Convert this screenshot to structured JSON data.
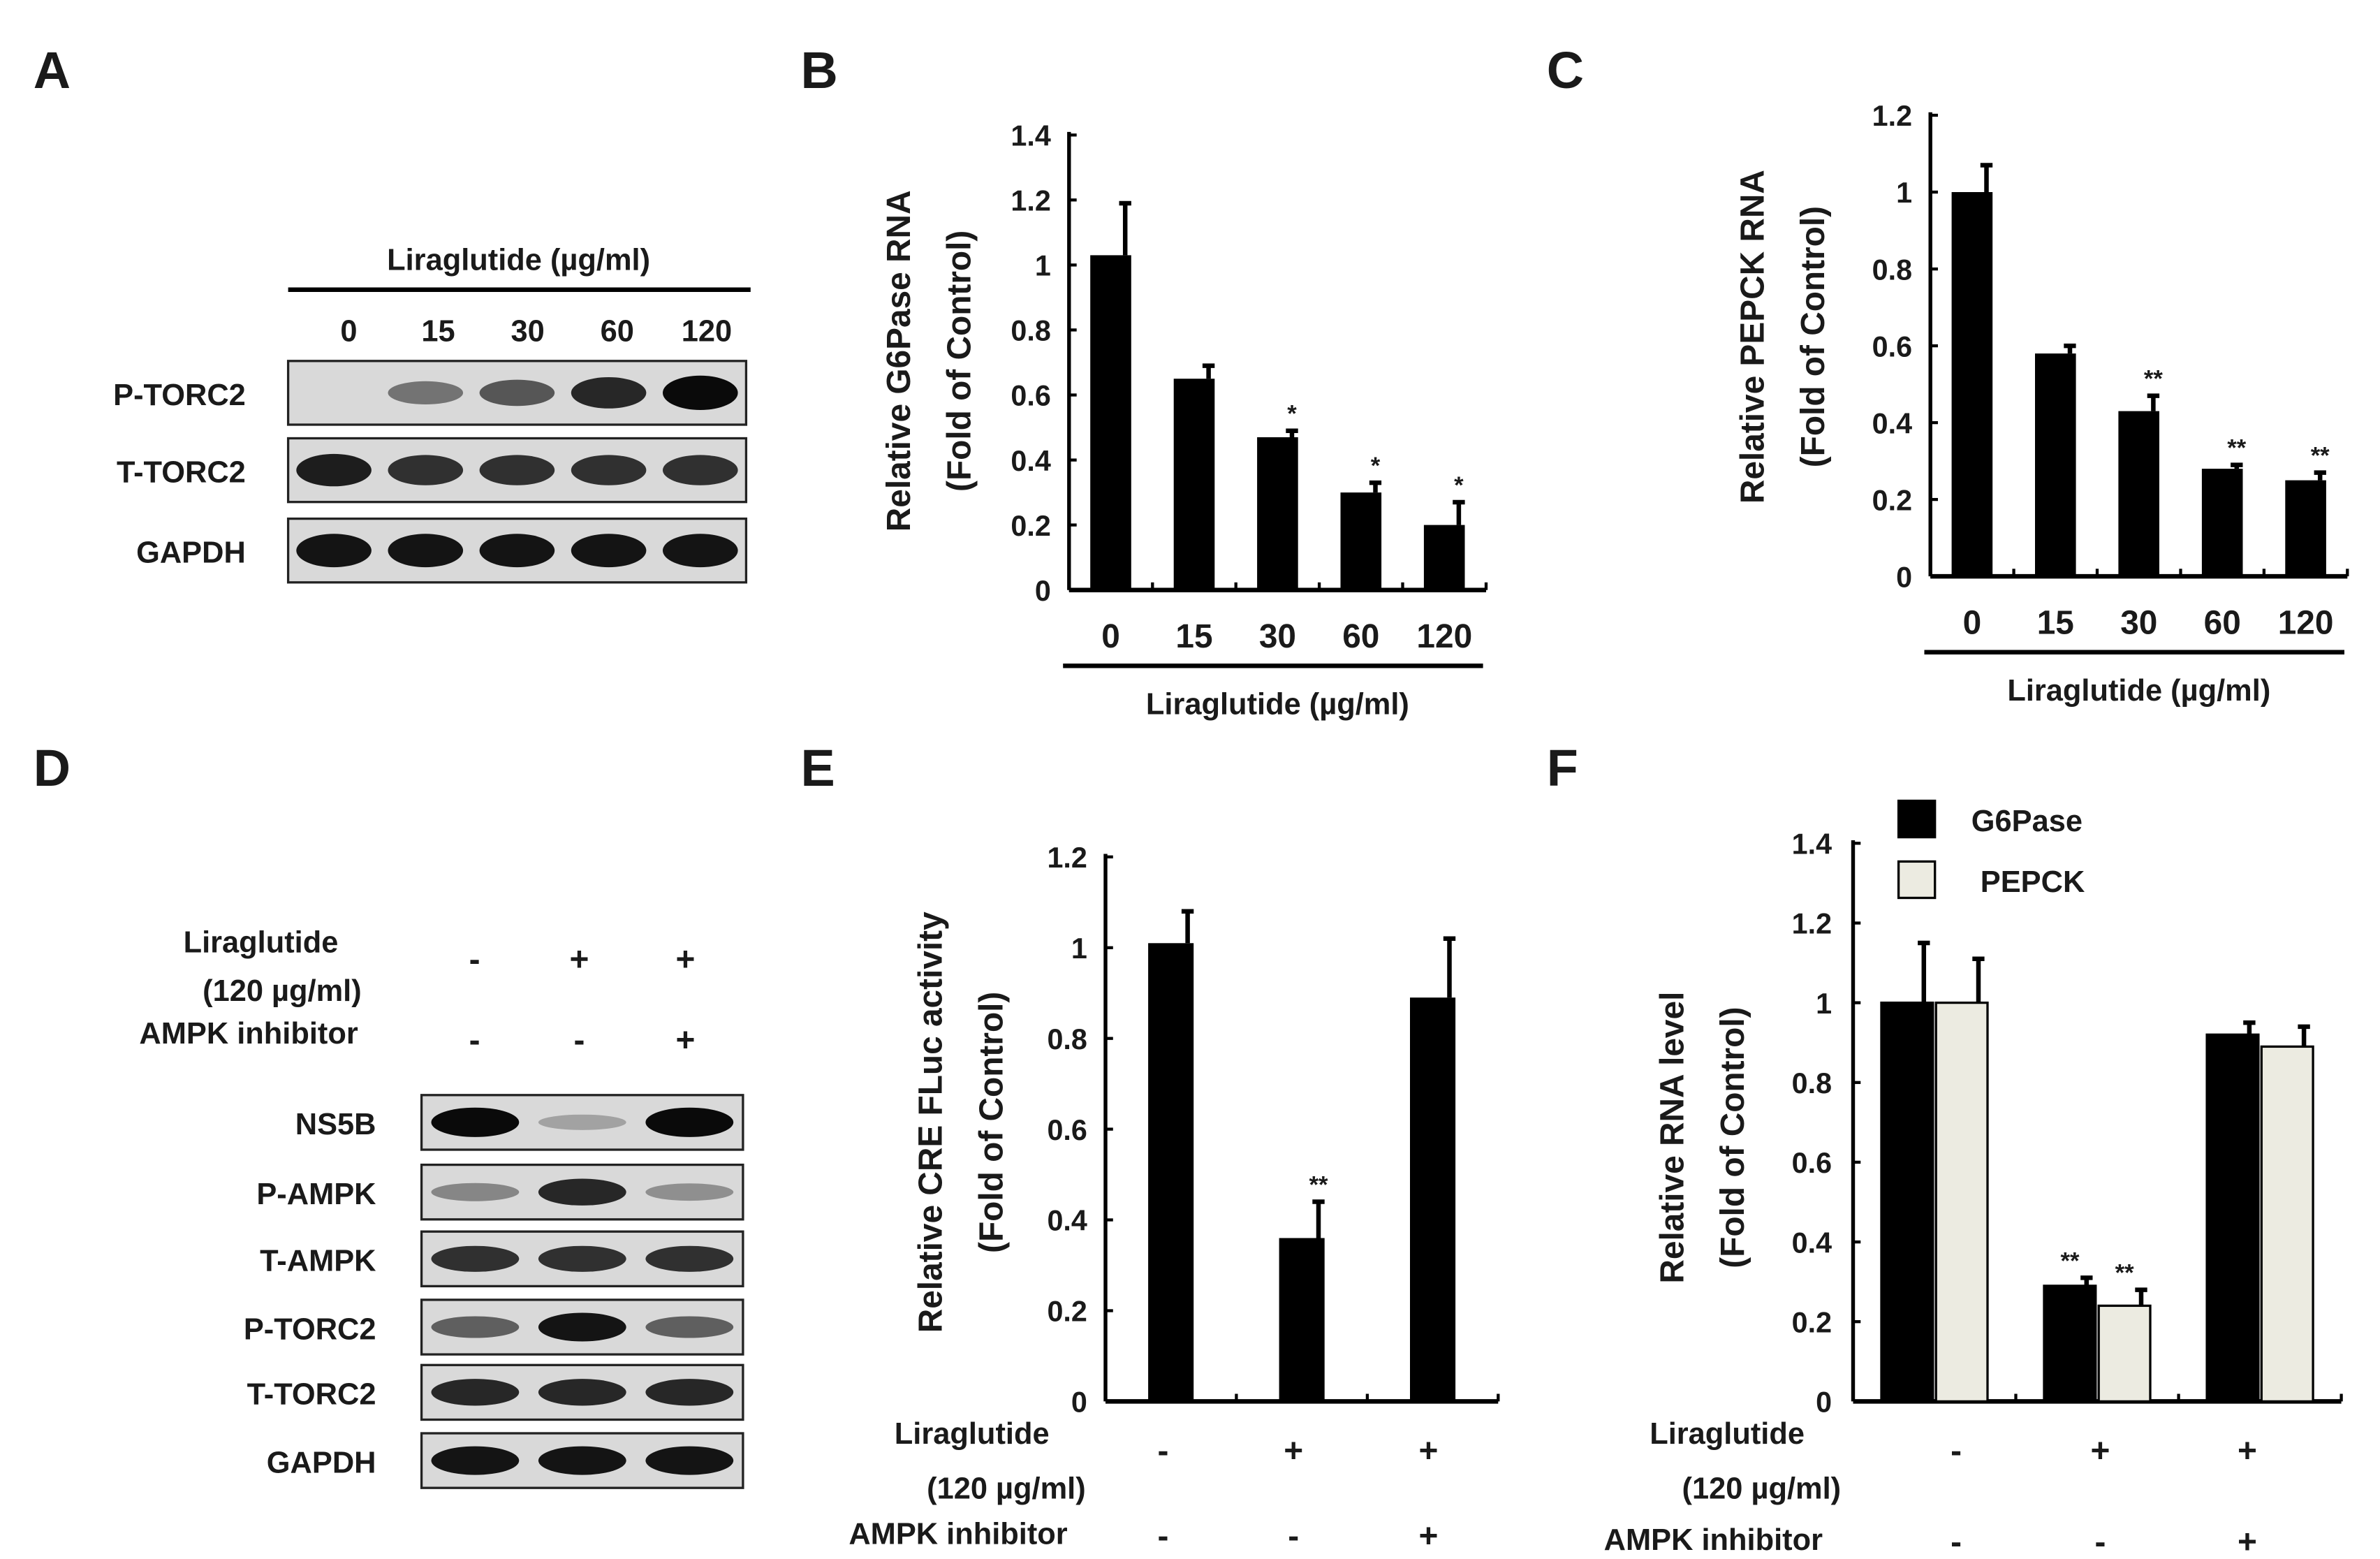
{
  "panels": {
    "A": {
      "letter": "A",
      "header": "Liraglutide (µg/ml)",
      "doses": [
        "0",
        "15",
        "30",
        "60",
        "120"
      ],
      "rows": [
        {
          "label": "P-TORC2",
          "intensity": [
            0.0,
            0.45,
            0.6,
            0.85,
            1.0
          ]
        },
        {
          "label": "T-TORC2",
          "intensity": [
            0.9,
            0.8,
            0.8,
            0.8,
            0.8
          ]
        },
        {
          "label": "GAPDH",
          "intensity": [
            0.95,
            0.95,
            0.95,
            0.95,
            0.95
          ]
        }
      ]
    },
    "D": {
      "letter": "D",
      "liraglutide_label": [
        "Liraglutide",
        "(120 µg/ml)"
      ],
      "inhibitor_label": "AMPK inhibitor",
      "liraglutide_signs": [
        "-",
        "+",
        "+"
      ],
      "inhibitor_signs": [
        "-",
        "-",
        "+"
      ],
      "rows": [
        {
          "label": "NS5B",
          "intensity": [
            1.0,
            0.2,
            1.0
          ]
        },
        {
          "label": "P-AMPK",
          "intensity": [
            0.35,
            0.85,
            0.3
          ]
        },
        {
          "label": "T-AMPK",
          "intensity": [
            0.8,
            0.8,
            0.8
          ]
        },
        {
          "label": "P-TORC2",
          "intensity": [
            0.55,
            0.95,
            0.55
          ]
        },
        {
          "label": "T-TORC2",
          "intensity": [
            0.85,
            0.85,
            0.85
          ]
        },
        {
          "label": "GAPDH",
          "intensity": [
            0.95,
            0.95,
            0.95
          ]
        }
      ]
    },
    "E_labels": {
      "letter": "E",
      "liraglutide_label": [
        "Liraglutide",
        "(120 µg/ml)"
      ],
      "inhibitor_label": "AMPK inhibitor",
      "liraglutide_signs": [
        "-",
        "+",
        "+"
      ],
      "inhibitor_signs": [
        "-",
        "-",
        "+"
      ]
    },
    "F_labels": {
      "letter": "F",
      "liraglutide_label": [
        "Liraglutide",
        "(120 µg/ml)"
      ],
      "inhibitor_label": "AMPK inhibitor",
      "liraglutide_signs": [
        "-",
        "+",
        "+"
      ],
      "inhibitor_signs": [
        "-",
        "-",
        "+"
      ]
    }
  },
  "chart_data": [
    {
      "id": "B",
      "letter": "B",
      "type": "bar",
      "categories": [
        "0",
        "15",
        "30",
        "60",
        "120"
      ],
      "values": [
        1.03,
        0.65,
        0.47,
        0.3,
        0.2
      ],
      "errors": [
        0.16,
        0.04,
        0.02,
        0.03,
        0.07
      ],
      "significance": [
        "",
        "",
        "*",
        "*",
        "*"
      ],
      "ylabel": [
        "Relative G6Pase RNA",
        "(Fold of Control)"
      ],
      "xlabel": "Liraglutide (µg/ml)",
      "ylim": [
        0,
        1.4
      ],
      "yticks": [
        "0",
        "0.2",
        "0.4",
        "0.6",
        "0.8",
        "1",
        "1.2",
        "1.4"
      ],
      "tick_values": [
        0,
        0.2,
        0.4,
        0.6,
        0.8,
        1.0,
        1.2,
        1.4
      ],
      "color": "#000000"
    },
    {
      "id": "C",
      "letter": "C",
      "type": "bar",
      "categories": [
        "0",
        "15",
        "30",
        "60",
        "120"
      ],
      "values": [
        1.0,
        0.58,
        0.43,
        0.28,
        0.25
      ],
      "errors": [
        0.07,
        0.02,
        0.04,
        0.01,
        0.02
      ],
      "significance": [
        "",
        "",
        "**",
        "**",
        "**"
      ],
      "ylabel": [
        "Relative PEPCK RNA",
        "(Fold of Control)"
      ],
      "xlabel": "Liraglutide (µg/ml)",
      "ylim": [
        0,
        1.2
      ],
      "yticks": [
        "0",
        "0.2",
        "0.4",
        "0.6",
        "0.8",
        "1",
        "1.2"
      ],
      "tick_values": [
        0,
        0.2,
        0.4,
        0.6,
        0.8,
        1.0,
        1.2
      ],
      "color": "#000000"
    },
    {
      "id": "E",
      "letter": "E",
      "type": "bar",
      "values": [
        1.01,
        0.36,
        0.89
      ],
      "errors": [
        0.07,
        0.08,
        0.13
      ],
      "significance": [
        "",
        "**",
        ""
      ],
      "ylabel": [
        "Relative CRE FLuc activity",
        "(Fold of Control)"
      ],
      "ylim": [
        0,
        1.2
      ],
      "yticks": [
        "0",
        "0.2",
        "0.4",
        "0.6",
        "0.8",
        "1",
        "1.2"
      ],
      "tick_values": [
        0,
        0.2,
        0.4,
        0.6,
        0.8,
        1.0,
        1.2
      ],
      "color": "#000000"
    },
    {
      "id": "F",
      "letter": "F",
      "type": "bar",
      "series": [
        {
          "name": "G6Pase",
          "values": [
            1.0,
            0.29,
            0.92
          ],
          "errors": [
            0.15,
            0.02,
            0.03
          ],
          "significance": [
            "",
            "**",
            ""
          ],
          "color": "#000000"
        },
        {
          "name": "PEPCK",
          "values": [
            1.0,
            0.24,
            0.89
          ],
          "errors": [
            0.11,
            0.04,
            0.05
          ],
          "significance": [
            "",
            "**",
            ""
          ],
          "color": "#ecebe1"
        }
      ],
      "ylabel": [
        "Relative RNA level",
        "(Fold of Control)"
      ],
      "ylim": [
        0,
        1.4
      ],
      "yticks": [
        "0",
        "0.2",
        "0.4",
        "0.6",
        "0.8",
        "1",
        "1.2",
        "1.4"
      ],
      "tick_values": [
        0,
        0.2,
        0.4,
        0.6,
        0.8,
        1.0,
        1.2,
        1.4
      ],
      "legend_position": "top"
    }
  ]
}
